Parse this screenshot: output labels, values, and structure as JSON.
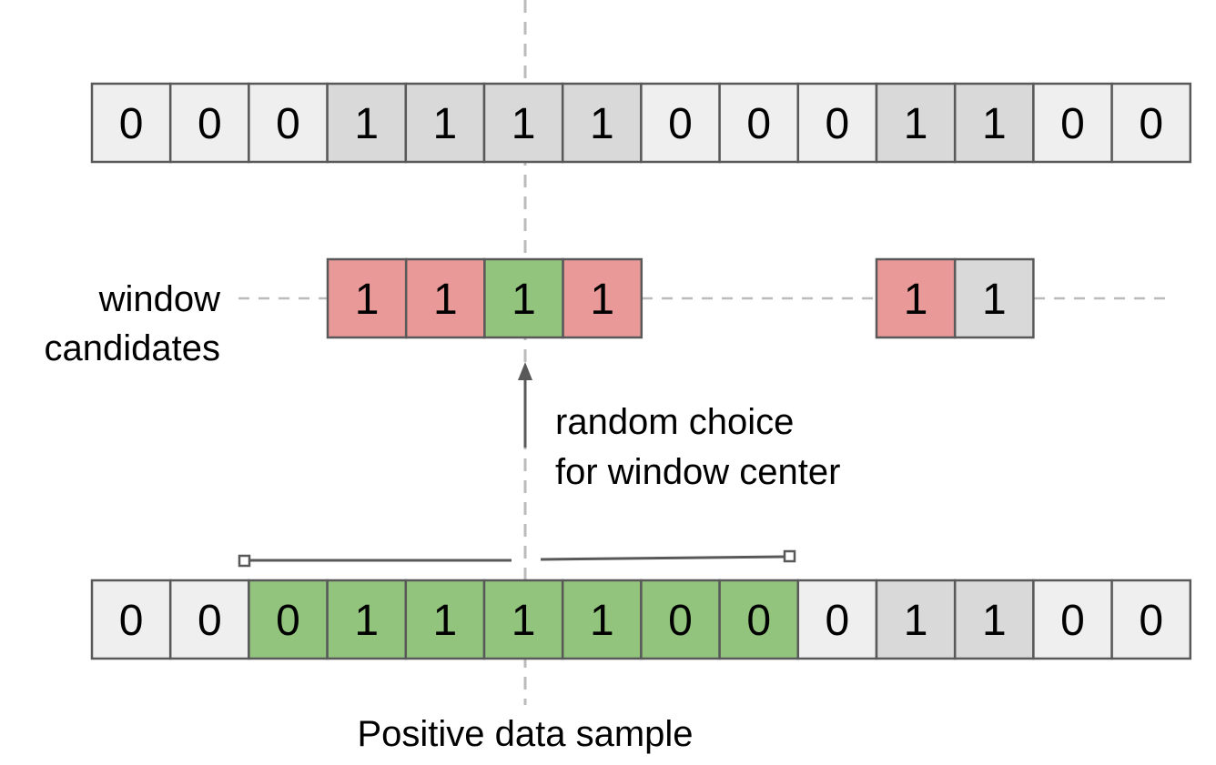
{
  "colors": {
    "zero_cell": "#efefef",
    "one_cell": "#d9d9d9",
    "window_red": "#ea9999",
    "window_green": "#93c47d",
    "cell_border": "#595959",
    "dashed_line": "#bbbbbb",
    "arrow": "#595959"
  },
  "top_sequence": {
    "values": [
      "0",
      "0",
      "0",
      "1",
      "1",
      "1",
      "1",
      "0",
      "0",
      "0",
      "1",
      "1",
      "0",
      "0"
    ],
    "fills": [
      "zero",
      "zero",
      "zero",
      "one",
      "one",
      "one",
      "one",
      "zero",
      "zero",
      "zero",
      "one",
      "one",
      "zero",
      "zero"
    ]
  },
  "window_candidates": {
    "label_line1": "window",
    "label_line2": "candidates",
    "group_a": {
      "values": [
        "1",
        "1",
        "1",
        "1"
      ],
      "fills": [
        "red",
        "red",
        "green",
        "red"
      ]
    },
    "group_b": {
      "values": [
        "1",
        "1"
      ],
      "fills": [
        "red",
        "one"
      ]
    }
  },
  "annotation": {
    "line1": "random choice",
    "line2": "for window center"
  },
  "bottom_sequence": {
    "values": [
      "0",
      "0",
      "0",
      "1",
      "1",
      "1",
      "1",
      "0",
      "0",
      "0",
      "1",
      "1",
      "0",
      "0"
    ],
    "fills": [
      "zero",
      "zero",
      "green",
      "green",
      "green",
      "green",
      "green",
      "green",
      "green",
      "zero",
      "one",
      "one",
      "zero",
      "zero"
    ],
    "caption": "Positive data sample"
  }
}
